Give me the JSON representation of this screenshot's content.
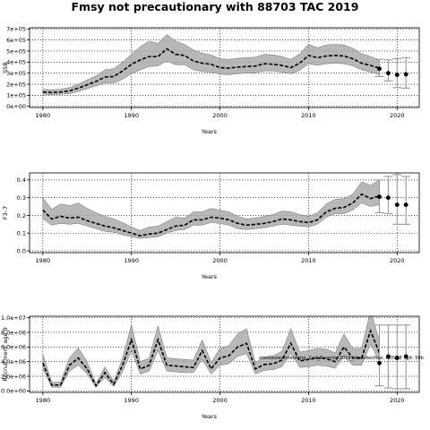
{
  "figure": {
    "title": "Fmsy not precautionary with 88703 TAC 2019"
  },
  "chart_data": [
    {
      "type": "line",
      "ylabel": "SSB",
      "xlabel": "Years",
      "xlim": [
        1978.5,
        2022.5
      ],
      "ylim": [
        -10000,
        710000
      ],
      "x_ticks": [
        1980,
        1990,
        2000,
        2010,
        2020
      ],
      "x_tick_labels": [
        "1980",
        "1990",
        "2000",
        "2010",
        "2020"
      ],
      "y_ticks": [
        0,
        100000,
        200000,
        300000,
        400000,
        500000,
        600000,
        700000
      ],
      "y_tick_labels": [
        "0e+00",
        "1e+05",
        "2e+05",
        "3e+05",
        "4e+05",
        "5e+05",
        "6e+05",
        "7e+05"
      ],
      "grid": true,
      "x": [
        1980,
        1981,
        1982,
        1983,
        1984,
        1985,
        1986,
        1987,
        1988,
        1989,
        1990,
        1991,
        1992,
        1993,
        1994,
        1995,
        1996,
        1997,
        1998,
        1999,
        2000,
        2001,
        2002,
        2003,
        2004,
        2005,
        2006,
        2007,
        2008,
        2009,
        2010,
        2011,
        2012,
        2013,
        2014,
        2015,
        2016,
        2017,
        2018
      ],
      "series": [
        {
          "role": "estimate",
          "values": [
            130000,
            125000,
            130000,
            140000,
            165000,
            195000,
            225000,
            265000,
            270000,
            320000,
            380000,
            420000,
            450000,
            450000,
            520000,
            470000,
            460000,
            410000,
            390000,
            380000,
            350000,
            345000,
            355000,
            360000,
            365000,
            385000,
            380000,
            370000,
            350000,
            390000,
            460000,
            440000,
            455000,
            460000,
            455000,
            430000,
            390000,
            370000,
            345000
          ]
        },
        {
          "role": "lower",
          "values": [
            110000,
            105000,
            110000,
            115000,
            135000,
            160000,
            185000,
            210000,
            210000,
            245000,
            295000,
            330000,
            360000,
            365000,
            410000,
            375000,
            375000,
            330000,
            315000,
            310000,
            290000,
            285000,
            295000,
            300000,
            305000,
            320000,
            320000,
            310000,
            295000,
            325000,
            385000,
            370000,
            385000,
            390000,
            385000,
            365000,
            330000,
            310000,
            285000
          ]
        },
        {
          "role": "upper",
          "values": [
            155000,
            150000,
            155000,
            170000,
            200000,
            240000,
            275000,
            330000,
            340000,
            400000,
            470000,
            540000,
            590000,
            570000,
            650000,
            590000,
            560000,
            510000,
            480000,
            465000,
            430000,
            425000,
            435000,
            440000,
            445000,
            470000,
            465000,
            450000,
            425000,
            475000,
            560000,
            530000,
            555000,
            560000,
            555000,
            525000,
            475000,
            450000,
            420000
          ]
        }
      ],
      "projection": {
        "x": [
          2018,
          2019,
          2020,
          2021
        ],
        "median": [
          340000,
          300000,
          285000,
          290000
        ],
        "low": [
          270000,
          230000,
          170000,
          165000
        ],
        "high": [
          425000,
          420000,
          430000,
          440000
        ]
      }
    },
    {
      "type": "line",
      "ylabel": "F3–7",
      "xlabel": "Years",
      "xlim": [
        1978.5,
        2022.5
      ],
      "ylim": [
        -0.01,
        0.44
      ],
      "x_ticks": [
        1980,
        1990,
        2000,
        2010,
        2020
      ],
      "x_tick_labels": [
        "1980",
        "1990",
        "2000",
        "2010",
        "2020"
      ],
      "y_ticks": [
        0.0,
        0.1,
        0.2,
        0.3,
        0.4
      ],
      "y_tick_labels": [
        "0.0",
        "0.1",
        "0.2",
        "0.3",
        "0.4"
      ],
      "grid": true,
      "x": [
        1980,
        1981,
        1982,
        1983,
        1984,
        1985,
        1986,
        1987,
        1988,
        1989,
        1990,
        1991,
        1992,
        1993,
        1994,
        1995,
        1996,
        1997,
        1998,
        1999,
        2000,
        2001,
        2002,
        2003,
        2004,
        2005,
        2006,
        2007,
        2008,
        2009,
        2010,
        2011,
        2012,
        2013,
        2014,
        2015,
        2016,
        2017,
        2018
      ],
      "series": [
        {
          "role": "estimate",
          "values": [
            0.23,
            0.18,
            0.195,
            0.185,
            0.19,
            0.17,
            0.155,
            0.14,
            0.13,
            0.115,
            0.1,
            0.085,
            0.095,
            0.1,
            0.12,
            0.14,
            0.145,
            0.175,
            0.175,
            0.19,
            0.185,
            0.175,
            0.155,
            0.145,
            0.15,
            0.155,
            0.165,
            0.18,
            0.175,
            0.165,
            0.16,
            0.175,
            0.22,
            0.24,
            0.245,
            0.27,
            0.32,
            0.295,
            0.31
          ]
        },
        {
          "role": "lower",
          "values": [
            0.18,
            0.145,
            0.155,
            0.15,
            0.155,
            0.14,
            0.125,
            0.11,
            0.105,
            0.09,
            0.08,
            0.07,
            0.075,
            0.08,
            0.1,
            0.115,
            0.12,
            0.145,
            0.145,
            0.16,
            0.155,
            0.145,
            0.125,
            0.12,
            0.125,
            0.13,
            0.14,
            0.15,
            0.145,
            0.14,
            0.135,
            0.15,
            0.19,
            0.21,
            0.21,
            0.23,
            0.27,
            0.25,
            0.26
          ]
        },
        {
          "role": "upper",
          "values": [
            0.3,
            0.235,
            0.265,
            0.255,
            0.27,
            0.24,
            0.215,
            0.195,
            0.18,
            0.16,
            0.135,
            0.115,
            0.135,
            0.14,
            0.165,
            0.19,
            0.185,
            0.22,
            0.22,
            0.24,
            0.23,
            0.22,
            0.195,
            0.18,
            0.185,
            0.195,
            0.205,
            0.225,
            0.22,
            0.205,
            0.195,
            0.215,
            0.265,
            0.29,
            0.295,
            0.32,
            0.39,
            0.37,
            0.4
          ]
        }
      ],
      "projection": {
        "x": [
          2018,
          2019,
          2020,
          2021
        ],
        "median": [
          0.305,
          0.3,
          0.26,
          0.26
        ],
        "low": [
          0.215,
          0.21,
          0.15,
          0.15
        ],
        "high": [
          0.4,
          0.42,
          0.43,
          0.42
        ]
      }
    },
    {
      "type": "line",
      "ylabel": "Recruitment age 0",
      "xlabel": "Years",
      "xlim": [
        1978.5,
        2022.5
      ],
      "ylim": [
        -200000,
        10200000
      ],
      "x_ticks": [
        1980,
        1990,
        2000,
        2010,
        2020
      ],
      "x_tick_labels": [
        "1980",
        "1990",
        "2000",
        "2010",
        "2020"
      ],
      "y_ticks": [
        0,
        2000000,
        4000000,
        6000000,
        8000000,
        10000000
      ],
      "y_tick_labels": [
        "0.0e+00",
        "2.0e+06",
        "4.0e+06",
        "6.0e+06",
        "8.0e+06",
        "1.0e+07"
      ],
      "grid": true,
      "x": [
        1980,
        1981,
        1982,
        1983,
        1984,
        1985,
        1986,
        1987,
        1988,
        1989,
        1990,
        1991,
        1992,
        1993,
        1994,
        1995,
        1996,
        1997,
        1998,
        1999,
        2000,
        2001,
        2002,
        2003,
        2004,
        2005,
        2006,
        2007,
        2008,
        2009,
        2010,
        2011,
        2012,
        2013,
        2014,
        2015,
        2016,
        2017,
        2018
      ],
      "series": [
        {
          "role": "estimate",
          "values": [
            3800000,
            800000,
            800000,
            3500000,
            4500000,
            3000000,
            700000,
            2500000,
            900000,
            3500000,
            7000000,
            3000000,
            3500000,
            7000000,
            3500000,
            3400000,
            3300000,
            3200000,
            5500000,
            3000000,
            4500000,
            4800000,
            6000000,
            6500000,
            3000000,
            3600000,
            3700000,
            4200000,
            6500000,
            4100000,
            4300000,
            4500000,
            4400000,
            4000000,
            6000000,
            4500000,
            4500000,
            8200000,
            5200000
          ]
        },
        {
          "role": "lower",
          "values": [
            3000000,
            500000,
            500000,
            2700000,
            3500000,
            2300000,
            500000,
            1800000,
            600000,
            2600000,
            5500000,
            2300000,
            2700000,
            5500000,
            2700000,
            2600000,
            2500000,
            2500000,
            4300000,
            2300000,
            3500000,
            3700000,
            4700000,
            5100000,
            2300000,
            2800000,
            2900000,
            3300000,
            5100000,
            3200000,
            3300000,
            3500000,
            3400000,
            3100000,
            4700000,
            3500000,
            3500000,
            6400000,
            4000000
          ]
        },
        {
          "role": "upper",
          "values": [
            5000000,
            1200000,
            1200000,
            4500000,
            5900000,
            4000000,
            1000000,
            3300000,
            1300000,
            4500000,
            9000000,
            4000000,
            4500000,
            8900000,
            4500000,
            4400000,
            4300000,
            4200000,
            7000000,
            3900000,
            5800000,
            6200000,
            7800000,
            8500000,
            3900000,
            4600000,
            4800000,
            5400000,
            8500000,
            5300000,
            5500000,
            5800000,
            5700000,
            5200000,
            7800000,
            5800000,
            5800000,
            11000000,
            6800000
          ]
        }
      ],
      "projection": {
        "x": [
          2018,
          2019,
          2020,
          2021
        ],
        "median": [
          3800000,
          4700000,
          4500000,
          4700000
        ],
        "low": [
          700000,
          400000,
          300000,
          300000
        ],
        "high": [
          9000000,
          9000000,
          9000000,
          9000000
        ]
      },
      "annotation": "stockassessment.org, Cod_Barents_2019_closedwsfinal, r10928 , git: 50b"
    }
  ]
}
